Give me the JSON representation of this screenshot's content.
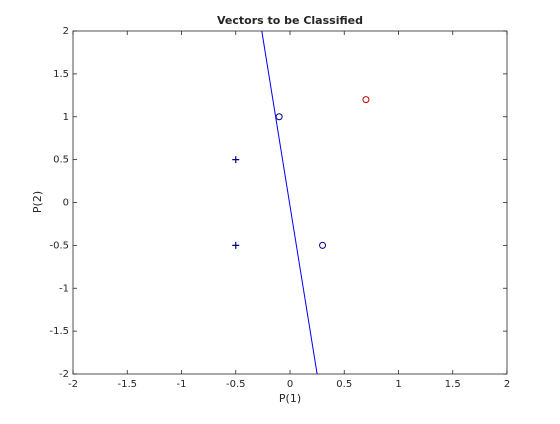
{
  "chart_data": {
    "type": "scatter",
    "title": "Vectors to be Classified",
    "x_label": "P(1)",
    "y_label": "P(2)",
    "xlim": [
      -2,
      2
    ],
    "ylim": [
      -2,
      2
    ],
    "xticks": [
      -2,
      -1.5,
      -1,
      -0.5,
      0,
      0.5,
      1,
      1.5,
      2
    ],
    "yticks": [
      -2,
      -1.5,
      -1,
      -0.5,
      0,
      0.5,
      1,
      1.5,
      2
    ],
    "series": [
      {
        "marker": "+",
        "color": "#00008b",
        "x": [
          -0.5,
          -0.5
        ],
        "values": [
          -0.5,
          0.5
        ]
      },
      {
        "marker": "o",
        "color": "#00008b",
        "x": [
          0.3,
          -0.1
        ],
        "values": [
          -0.5,
          1
        ]
      },
      {
        "marker": "o",
        "color": "#cc0000",
        "x": [
          0.7
        ],
        "values": [
          1.2
        ]
      },
      {
        "marker": "line",
        "color": "#0000ff",
        "x": [
          -0.26,
          0.25
        ],
        "values": [
          2,
          -2
        ]
      }
    ]
  }
}
